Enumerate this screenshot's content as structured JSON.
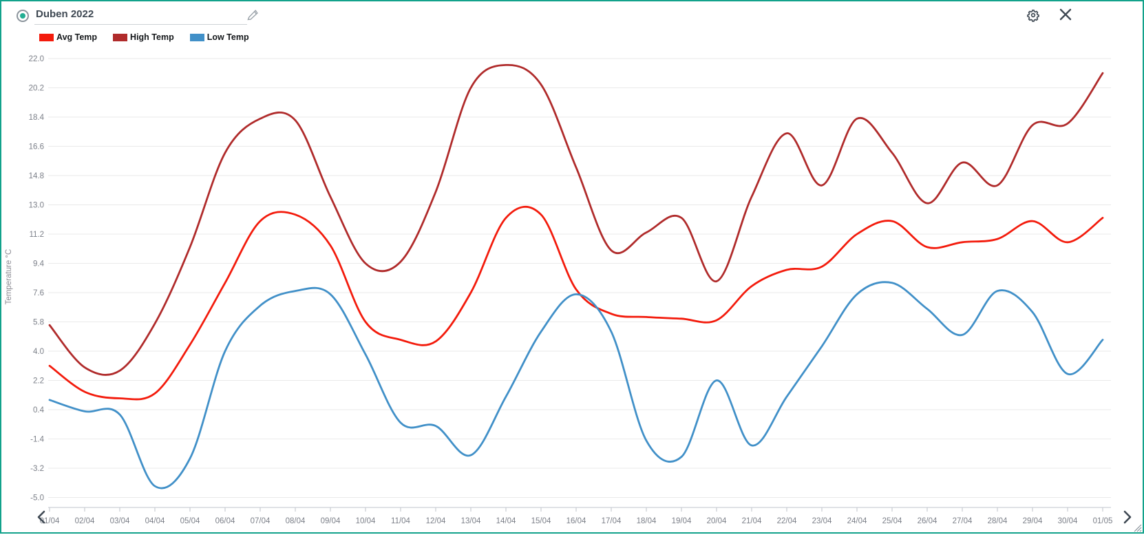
{
  "header": {
    "title": "Duben 2022",
    "radio_selected": true
  },
  "toolbar": {
    "edit_icon": "pencil",
    "settings_icon": "gear",
    "close_icon": "x"
  },
  "colors": {
    "border_teal": "#12a28b",
    "radio_dot": "#23ae93",
    "icon_slate": "#3e4852",
    "tick_text": "#7b7f88",
    "gridline": "#eaeaea",
    "axis_line": "#d5d9de",
    "axis_tick": "#c7ccd2",
    "avg_red": "#f31b0c",
    "high_darkred": "#b02b2b",
    "low_blue": "#4190c8"
  },
  "chart_data": {
    "type": "line",
    "ylabel": "Temperature °C",
    "ylim": [
      -5.0,
      22.0
    ],
    "grid": "horizontal",
    "legend_position": "top-left",
    "yticks": [
      22.0,
      20.2,
      18.4,
      16.6,
      14.8,
      13.0,
      11.2,
      9.4,
      7.6,
      5.8,
      4.0,
      2.2,
      0.4,
      -1.4,
      -3.2,
      -5.0
    ],
    "categories": [
      "01/04",
      "02/04",
      "03/04",
      "04/04",
      "05/04",
      "06/04",
      "07/04",
      "08/04",
      "09/04",
      "10/04",
      "11/04",
      "12/04",
      "13/04",
      "14/04",
      "15/04",
      "16/04",
      "17/04",
      "18/04",
      "19/04",
      "20/04",
      "21/04",
      "22/04",
      "23/04",
      "24/04",
      "25/04",
      "26/04",
      "27/04",
      "28/04",
      "29/04",
      "30/04",
      "01/05"
    ],
    "series": [
      {
        "name": "Avg Temp",
        "color": "#f31b0c",
        "values": [
          3.1,
          1.5,
          1.1,
          1.4,
          4.4,
          8.2,
          12.0,
          12.4,
          10.5,
          5.8,
          4.7,
          4.6,
          7.6,
          12.2,
          12.4,
          7.8,
          6.3,
          6.1,
          6.0,
          5.9,
          8.0,
          9.0,
          9.2,
          11.2,
          12.0,
          10.4,
          10.7,
          10.9,
          12.0,
          10.7,
          12.2
        ]
      },
      {
        "name": "High Temp",
        "color": "#b02b2b",
        "values": [
          5.6,
          3.0,
          2.8,
          5.7,
          10.4,
          16.2,
          18.3,
          18.2,
          13.5,
          9.4,
          9.5,
          13.8,
          20.2,
          21.6,
          20.4,
          15.3,
          10.2,
          11.3,
          12.2,
          8.3,
          13.5,
          17.4,
          14.2,
          18.3,
          16.2,
          13.1,
          15.6,
          14.2,
          17.9,
          18.0,
          21.1
        ]
      },
      {
        "name": "Low Temp",
        "color": "#4190c8",
        "values": [
          1.0,
          0.3,
          0.1,
          -4.3,
          -2.6,
          4.0,
          6.8,
          7.7,
          7.5,
          3.8,
          -0.4,
          -0.6,
          -2.4,
          1.2,
          5.2,
          7.5,
          5.2,
          -1.5,
          -2.5,
          2.2,
          -1.8,
          1.2,
          4.3,
          7.5,
          8.2,
          6.6,
          5.0,
          7.7,
          6.4,
          2.6,
          4.7
        ]
      }
    ],
    "x_scroll_arrows": [
      "prev",
      "next"
    ]
  }
}
